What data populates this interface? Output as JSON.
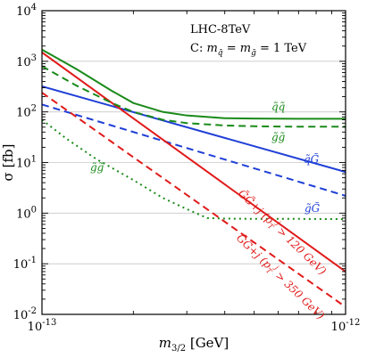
{
  "chart_data": {
    "type": "line",
    "title": "",
    "xlabel": "m₃/₂ [GeV]",
    "ylabel": "σ [fb]",
    "xscale": "log",
    "yscale": "log",
    "xlim": [
      1e-13,
      1e-12
    ],
    "ylim": [
      0.01,
      10000
    ],
    "grid": true,
    "x_ticks": [
      {
        "value": 1e-13,
        "mantissa": "10",
        "exponent": "-13"
      },
      {
        "value": 1e-12,
        "mantissa": "10",
        "exponent": "-12"
      }
    ],
    "y_ticks": [
      {
        "value": 10000,
        "mantissa": "10",
        "exponent": "4"
      },
      {
        "value": 1000,
        "mantissa": "10",
        "exponent": "3"
      },
      {
        "value": 100,
        "mantissa": "10",
        "exponent": "2"
      },
      {
        "value": 10,
        "mantissa": "10",
        "exponent": "1"
      },
      {
        "value": 1,
        "mantissa": "10",
        "exponent": "0"
      },
      {
        "value": 0.1,
        "mantissa": "10",
        "exponent": "-1"
      },
      {
        "value": 0.01,
        "mantissa": "10",
        "exponent": "-2"
      }
    ],
    "annotations": [
      "LHC-8TeV",
      "C: m q̃ = m g̃ = 1 TeV"
    ],
    "series": [
      {
        "name": "q̃q̃",
        "color": "#1a8a1a",
        "dash": "solid",
        "x": [
          1e-13,
          1.3e-13,
          1.7e-13,
          2e-13,
          2.5e-13,
          3e-13,
          4e-13,
          5e-13,
          7e-13,
          1e-12
        ],
        "y": [
          1700,
          700,
          260,
          150,
          100,
          85,
          75,
          74,
          73,
          73
        ]
      },
      {
        "name": "q̃G̃",
        "color": "#1f3fd6",
        "dash": "solid",
        "x": [
          1e-13,
          1e-12
        ],
        "y": [
          320,
          6.5
        ]
      },
      {
        "name": "g̃G̃",
        "color": "#1f3fd6",
        "dash": "dashed",
        "x": [
          1e-13,
          1e-12
        ],
        "y": [
          140,
          2.2
        ]
      },
      {
        "name": "g̃g̃",
        "color": "#1a8a1a",
        "dash": "dotted",
        "x": [
          1e-13,
          1.2e-13,
          1.5e-13,
          2e-13,
          2.5e-13,
          3e-13,
          3.5e-13,
          4e-13,
          5e-13,
          7e-13,
          1e-12
        ],
        "y": [
          70,
          30,
          12,
          4.5,
          2.0,
          1.2,
          0.8,
          0.78,
          0.77,
          0.77,
          0.76
        ]
      },
      {
        "name": "G̃G̃+j (pT j > 120 GeV)",
        "color": "#e01b1b",
        "dash": "solid",
        "x": [
          1e-13,
          1e-12
        ],
        "y": [
          1500,
          0.07
        ]
      },
      {
        "name": "G̃G̃+j (pT j > 350 GeV)",
        "color": "#e01b1b",
        "dash": "dashed",
        "x": [
          1e-13,
          1e-12
        ],
        "y": [
          240,
          0.014
        ]
      }
    ],
    "series_extra": {
      "qq_dashed": {
        "color": "#1a8a1a",
        "dash": "dashed",
        "x": [
          1e-13,
          1.3e-13,
          1.7e-13,
          2e-13,
          2.5e-13,
          3e-13,
          4e-13,
          5e-13,
          7e-13,
          1e-12
        ],
        "y": [
          800,
          330,
          150,
          100,
          70,
          60,
          54,
          52,
          51,
          51
        ]
      }
    },
    "labels": {
      "qq": "q̃q̃",
      "gg_top": "g̃g̃",
      "qG": "q̃G̃",
      "gG": "g̃G̃",
      "gg": "g̃g̃",
      "GG120": "G̃G̃+j (pT  > 120 GeV)",
      "GG350": "G̃G̃+j (pT  > 350 GeV)"
    }
  }
}
